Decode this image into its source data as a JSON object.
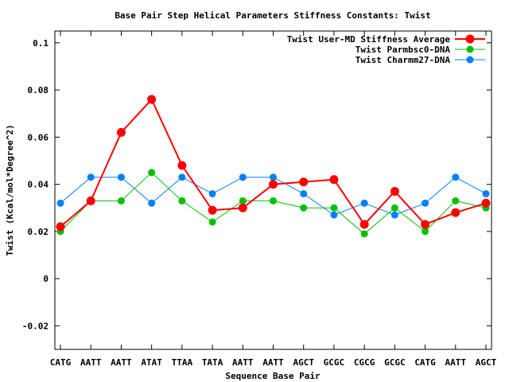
{
  "chart_data": {
    "type": "line",
    "title": "Base Pair Step Helical Parameters Stiffness Constants: Twist",
    "xlabel": "Sequence Base Pair",
    "ylabel": "Twist (Kcal/mol*Degree^2)",
    "ylim": [
      -0.03,
      0.105
    ],
    "yticks": [
      -0.02,
      0,
      0.02,
      0.04,
      0.06,
      0.08,
      0.1
    ],
    "ytick_labels": [
      "-0.02",
      "0",
      "0.02",
      "0.04",
      "0.06",
      "0.08",
      "0.1"
    ],
    "categories": [
      "CATG",
      "AATT",
      "AATT",
      "ATAT",
      "TTAA",
      "TATA",
      "AATT",
      "AATT",
      "AGCT",
      "GCGC",
      "CGCG",
      "GCGC",
      "CATG",
      "AATT",
      "AGCT"
    ],
    "legend_position": "top-right",
    "grid": false,
    "series": [
      {
        "name": "Twist User-MD Stiffness Average",
        "color": "#ff0000",
        "values": [
          0.022,
          0.033,
          0.062,
          0.076,
          0.048,
          0.029,
          0.03,
          0.04,
          0.041,
          0.042,
          0.023,
          0.037,
          0.023,
          0.028,
          0.032
        ]
      },
      {
        "name": "Twist Parmbsc0-DNA",
        "color": "#00c000",
        "values": [
          0.02,
          0.033,
          0.033,
          0.045,
          0.033,
          0.024,
          0.033,
          0.033,
          0.03,
          0.03,
          0.019,
          0.03,
          0.02,
          0.033,
          0.03
        ]
      },
      {
        "name": "Twist Charmm27-DNA",
        "color": "#0080ff",
        "values": [
          0.032,
          0.043,
          0.043,
          0.032,
          0.043,
          0.036,
          0.043,
          0.043,
          0.036,
          0.027,
          0.032,
          0.027,
          0.032,
          0.043,
          0.036
        ]
      }
    ]
  }
}
